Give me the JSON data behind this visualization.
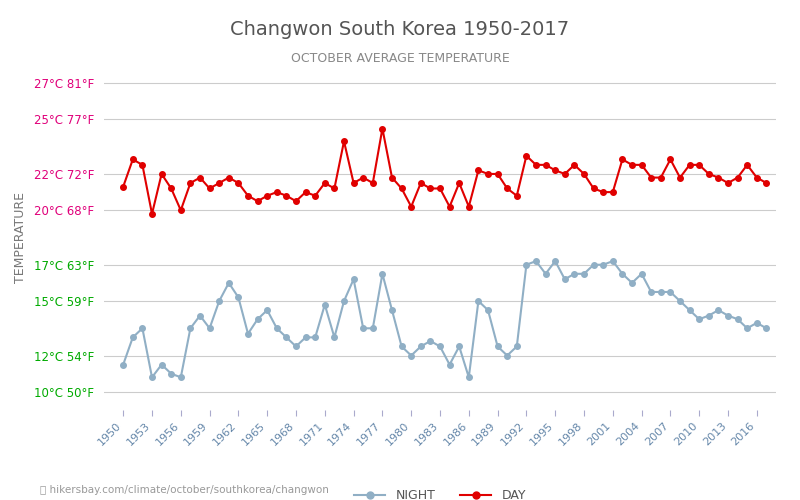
{
  "title": "Changwon South Korea 1950-2017",
  "subtitle": "OCTOBER AVERAGE TEMPERATURE",
  "ylabel": "TEMPERATURE",
  "footer": "hikersbay.com/climate/october/southkorea/changwon",
  "years": [
    1950,
    1951,
    1952,
    1953,
    1954,
    1955,
    1956,
    1957,
    1958,
    1959,
    1960,
    1961,
    1962,
    1963,
    1964,
    1965,
    1966,
    1967,
    1968,
    1969,
    1970,
    1971,
    1972,
    1973,
    1974,
    1975,
    1976,
    1977,
    1978,
    1979,
    1980,
    1981,
    1982,
    1983,
    1984,
    1985,
    1986,
    1987,
    1988,
    1989,
    1990,
    1991,
    1992,
    1993,
    1994,
    1995,
    1996,
    1997,
    1998,
    1999,
    2000,
    2001,
    2002,
    2003,
    2004,
    2005,
    2006,
    2007,
    2008,
    2009,
    2010,
    2011,
    2012,
    2013,
    2014,
    2015,
    2016,
    2017
  ],
  "day_temps": [
    21.3,
    22.8,
    22.5,
    19.8,
    22.0,
    21.2,
    20.0,
    21.5,
    21.8,
    21.2,
    21.5,
    21.8,
    21.5,
    20.8,
    20.5,
    20.8,
    21.0,
    20.8,
    20.5,
    21.0,
    20.8,
    21.5,
    21.2,
    23.8,
    21.5,
    21.8,
    21.5,
    24.5,
    21.8,
    21.2,
    20.2,
    21.5,
    21.2,
    21.2,
    20.2,
    21.5,
    20.2,
    22.2,
    22.0,
    22.0,
    21.2,
    20.8,
    23.0,
    22.5,
    22.5,
    22.2,
    22.0,
    22.5,
    22.0,
    21.2,
    21.0,
    21.0,
    22.8,
    22.5,
    22.5,
    21.8,
    21.8,
    22.8,
    21.8,
    22.5,
    22.5,
    22.0,
    21.8,
    21.5,
    21.8,
    22.5,
    21.8,
    21.5
  ],
  "night_temps": [
    11.5,
    13.0,
    13.5,
    10.8,
    11.5,
    11.0,
    10.8,
    13.5,
    14.2,
    13.5,
    15.0,
    16.0,
    15.2,
    13.2,
    14.0,
    14.5,
    13.5,
    13.0,
    12.5,
    13.0,
    13.0,
    14.8,
    13.0,
    15.0,
    16.2,
    13.5,
    13.5,
    16.5,
    14.5,
    12.5,
    12.0,
    12.5,
    12.8,
    12.5,
    11.5,
    12.5,
    10.8,
    15.0,
    14.5,
    12.5,
    12.0,
    12.5,
    17.0,
    17.2,
    16.5,
    17.2,
    16.2,
    16.5,
    16.5,
    17.0,
    17.0,
    17.2,
    16.5,
    16.0,
    16.5,
    15.5,
    15.5,
    15.5,
    15.0,
    14.5,
    14.0,
    14.2,
    14.5,
    14.2,
    14.0,
    13.5,
    13.8,
    13.5
  ],
  "day_color": "#e00000",
  "night_color": "#90afc5",
  "title_color": "#555555",
  "subtitle_color": "#888888",
  "ylabel_color": "#777777",
  "tick_colors": {
    "hot": "#e0007a",
    "cold": "#00aa00"
  },
  "yticks_celsius": [
    10,
    12,
    15,
    17,
    20,
    22,
    25,
    27
  ],
  "yticks_fahrenheit": [
    50,
    54,
    59,
    63,
    68,
    72,
    77,
    81
  ],
  "background_color": "#ffffff",
  "grid_color": "#cccccc",
  "footer_color": "#999999",
  "marker_size": 4,
  "line_width": 1.5,
  "ylim": [
    9,
    28
  ]
}
